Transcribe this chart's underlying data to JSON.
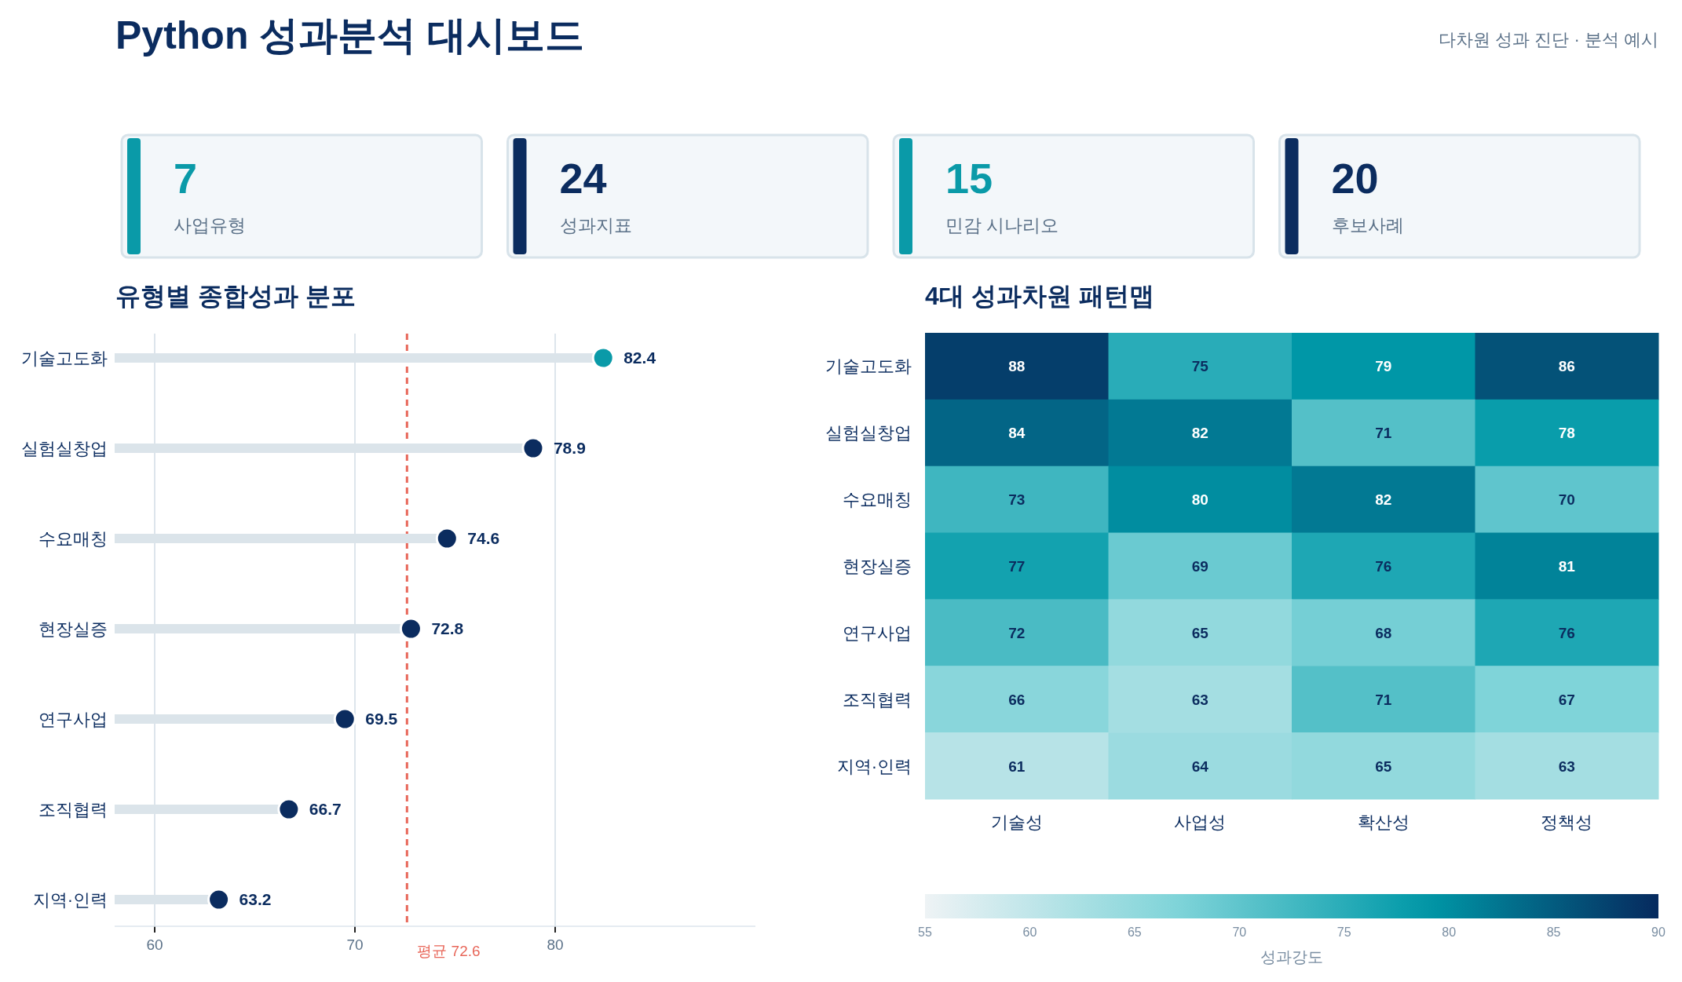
{
  "chart_data": [
    {
      "type": "other",
      "title": "Python 성과분석 대시보드",
      "subtitle": "다차원 성과 진단 · 분석 예시",
      "categories": [
        "사업유형",
        "성과지표",
        "민감 시나리오",
        "후보사례"
      ],
      "values": [
        7,
        24,
        15,
        20
      ],
      "data_labels": true
    },
    {
      "type": "lollipop",
      "title": "유형별 종합성과 분포",
      "orientation": "horizontal",
      "categories": [
        "기술고도화",
        "실험실창업",
        "수요매칭",
        "현장실증",
        "연구사업",
        "조직협력",
        "지역·인력"
      ],
      "values": [
        82.4,
        78.9,
        74.6,
        72.8,
        69.5,
        66.7,
        63.2
      ],
      "colors": [
        "#0a9aa8",
        "#0b2c5f",
        "#0b2c5f",
        "#0b2c5f",
        "#0b2c5f",
        "#0b2c5f",
        "#0b2c5f"
      ],
      "xlim": [
        58,
        90
      ],
      "xticks": [
        60,
        70,
        80
      ],
      "grid": "x",
      "data_labels": true,
      "marker": "circle",
      "ref_lines": [
        {
          "axis": "x",
          "value": 72.6,
          "label": "평균 72.6",
          "color": "#e8675a",
          "line_style": "dashed"
        }
      ]
    },
    {
      "type": "heatmap",
      "title": "4대 성과차원 패턴맵",
      "categories": [
        "기술성",
        "사업성",
        "확산성",
        "정책성"
      ],
      "y_categories": [
        "기술고도화",
        "실험실창업",
        "수요매칭",
        "현장실증",
        "연구사업",
        "조직협력",
        "지역·인력"
      ],
      "cells": [
        [
          88,
          75,
          79,
          86
        ],
        [
          84,
          82,
          71,
          78
        ],
        [
          73,
          80,
          82,
          70
        ],
        [
          77,
          69,
          76,
          81
        ],
        [
          72,
          65,
          68,
          76
        ],
        [
          66,
          63,
          71,
          67
        ],
        [
          61,
          64,
          65,
          63
        ]
      ],
      "data_labels": true,
      "clim": [
        55,
        90
      ],
      "cticks": [
        55,
        60,
        65,
        70,
        75,
        80,
        85,
        90
      ],
      "clabel": "성과강도"
    }
  ]
}
